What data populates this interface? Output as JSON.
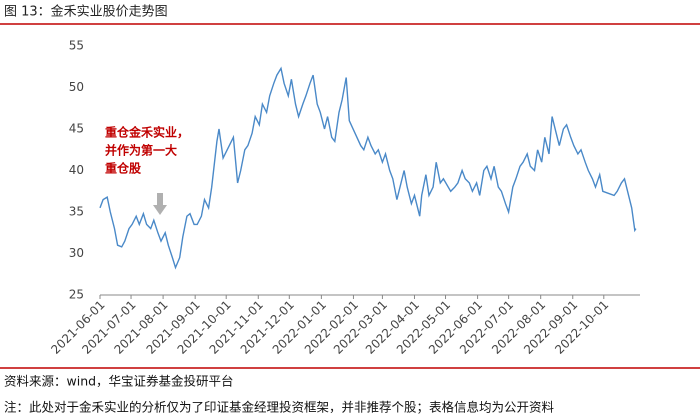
{
  "chart_data": {
    "type": "line",
    "title": "图 13：金禾实业股价走势图",
    "annotation": [
      "重仓金禾实业，",
      "并作为第一大",
      "重仓股"
    ],
    "source": "资料来源：wind，华宝证券基金投研平台",
    "note": "注：此处对于金禾实业的分析仅为了印证基金经理投资框架，并非推荐个股；表格信息均为公开资料",
    "color": "#4a89c8",
    "x": [
      "2021-06-01",
      "2021-06-04",
      "2021-06-08",
      "2021-06-11",
      "2021-06-15",
      "2021-06-18",
      "2021-06-22",
      "2021-06-25",
      "2021-06-29",
      "2021-07-02",
      "2021-07-06",
      "2021-07-09",
      "2021-07-13",
      "2021-07-16",
      "2021-07-20",
      "2021-07-23",
      "2021-07-27",
      "2021-07-30",
      "2021-08-03",
      "2021-08-06",
      "2021-08-10",
      "2021-08-13",
      "2021-08-17",
      "2021-08-20",
      "2021-08-24",
      "2021-08-27",
      "2021-08-31",
      "2021-09-03",
      "2021-09-07",
      "2021-09-10",
      "2021-09-14",
      "2021-09-17",
      "2021-09-22",
      "2021-09-24",
      "2021-09-28",
      "2021-10-08",
      "2021-10-12",
      "2021-10-15",
      "2021-10-19",
      "2021-10-22",
      "2021-10-26",
      "2021-10-29",
      "2021-11-02",
      "2021-11-05",
      "2021-11-09",
      "2021-11-12",
      "2021-11-16",
      "2021-11-19",
      "2021-11-23",
      "2021-11-26",
      "2021-11-30",
      "2021-12-03",
      "2021-12-07",
      "2021-12-10",
      "2021-12-14",
      "2021-12-17",
      "2021-12-21",
      "2021-12-24",
      "2021-12-28",
      "2021-12-31",
      "2022-01-04",
      "2022-01-07",
      "2022-01-11",
      "2022-01-14",
      "2022-01-18",
      "2022-01-21",
      "2022-01-25",
      "2022-01-28",
      "2022-02-08",
      "2022-02-11",
      "2022-02-15",
      "2022-02-18",
      "2022-02-22",
      "2022-02-25",
      "2022-03-01",
      "2022-03-04",
      "2022-03-08",
      "2022-03-11",
      "2022-03-15",
      "2022-03-18",
      "2022-03-22",
      "2022-03-25",
      "2022-03-29",
      "2022-04-01",
      "2022-04-06",
      "2022-04-08",
      "2022-04-12",
      "2022-04-15",
      "2022-04-19",
      "2022-04-22",
      "2022-04-26",
      "2022-04-29",
      "2022-05-06",
      "2022-05-10",
      "2022-05-13",
      "2022-05-17",
      "2022-05-20",
      "2022-05-24",
      "2022-05-27",
      "2022-05-31",
      "2022-06-03",
      "2022-06-07",
      "2022-06-10",
      "2022-06-14",
      "2022-06-17",
      "2022-06-21",
      "2022-06-24",
      "2022-06-28",
      "2022-07-01",
      "2022-07-05",
      "2022-07-08",
      "2022-07-12",
      "2022-07-15",
      "2022-07-19",
      "2022-07-22",
      "2022-07-26",
      "2022-07-29",
      "2022-08-02",
      "2022-08-05",
      "2022-08-09",
      "2022-08-12",
      "2022-08-16",
      "2022-08-19",
      "2022-08-23",
      "2022-08-26",
      "2022-08-30",
      "2022-09-02",
      "2022-09-06",
      "2022-09-09",
      "2022-09-13",
      "2022-09-16",
      "2022-09-20",
      "2022-09-23",
      "2022-09-27",
      "2022-09-30",
      "2022-10-11",
      "2022-10-14",
      "2022-10-18",
      "2022-10-21",
      "2022-10-25",
      "2022-10-28",
      "2022-10-31",
      "2022-11-01"
    ],
    "values": [
      35.5,
      36.5,
      36.8,
      35,
      33,
      31,
      30.8,
      31.5,
      33,
      33.5,
      34.5,
      33.5,
      34.8,
      33.5,
      33,
      34,
      32.5,
      31.5,
      32.5,
      31,
      29.5,
      28.3,
      29.5,
      32,
      34.5,
      34.8,
      33.5,
      33.5,
      34.5,
      36.5,
      35.5,
      38,
      43.5,
      45,
      41.5,
      44,
      38.5,
      40,
      42.5,
      43,
      44.5,
      46.5,
      45.5,
      48,
      47,
      49,
      50.5,
      51.5,
      52.3,
      50.5,
      49,
      51,
      48,
      46.5,
      48,
      49,
      50.5,
      51.5,
      48,
      47,
      45,
      46.5,
      44,
      43.5,
      47,
      48.5,
      51.2,
      46,
      43,
      42.5,
      44,
      43,
      42,
      42.5,
      41,
      42,
      40,
      39,
      36.5,
      38,
      40,
      38,
      36,
      37,
      34.5,
      37,
      39.5,
      37,
      38,
      41,
      38.5,
      39,
      37.5,
      38,
      38.5,
      40,
      39,
      38.5,
      37.5,
      38.5,
      37,
      40,
      40.5,
      39,
      40.5,
      38,
      37.5,
      36,
      35,
      38,
      39,
      40.5,
      41,
      42,
      40.5,
      40,
      42.5,
      41,
      44,
      42,
      46.5,
      44.5,
      43,
      45,
      45.5,
      44,
      43,
      42,
      42.5,
      41,
      40,
      39,
      38,
      39.5,
      37.5,
      37,
      37.5,
      38.5,
      39,
      37,
      35.5,
      32.8,
      33
    ],
    "xlim": [
      "2021-06-01",
      "2022-11-05"
    ],
    "xticks": [
      "2021-06-01",
      "2021-07-01",
      "2021-08-01",
      "2021-09-01",
      "2021-10-01",
      "2021-11-01",
      "2021-12-01",
      "2022-01-01",
      "2022-02-01",
      "2022-03-01",
      "2022-04-01",
      "2022-05-01",
      "2022-06-01",
      "2022-07-01",
      "2022-08-01",
      "2022-09-01",
      "2022-10-01"
    ],
    "ylim": [
      25,
      55
    ],
    "yticks": [
      25,
      30,
      35,
      40,
      45,
      50,
      55
    ]
  }
}
